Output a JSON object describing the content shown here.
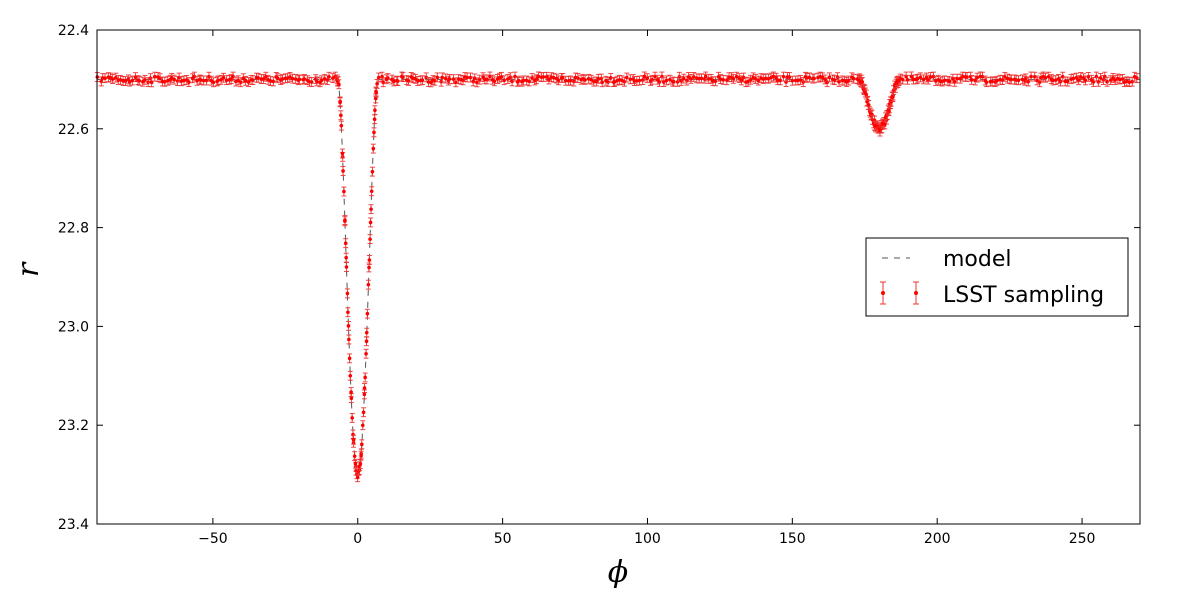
{
  "chart_data": {
    "type": "scatter",
    "title": "",
    "xlabel": "ϕ",
    "ylabel": "r",
    "xlim": [
      -90,
      270
    ],
    "ylim": [
      23.4,
      22.4
    ],
    "y_inverted": true,
    "grid": false,
    "legend_placement": "center-right",
    "x_ticks": [
      -50,
      0,
      50,
      100,
      150,
      200,
      250
    ],
    "x_tick_labels": [
      "−50",
      "0",
      "50",
      "100",
      "150",
      "200",
      "250"
    ],
    "y_ticks": [
      22.4,
      22.6,
      22.8,
      23.0,
      23.2,
      23.4
    ],
    "y_tick_labels": [
      "22.4",
      "22.6",
      "22.8",
      "23.0",
      "23.2",
      "23.4"
    ],
    "colors": {
      "model": "#555555",
      "sampling": "#ff0000"
    },
    "baseline": 22.5,
    "eclipses": [
      {
        "center": 0,
        "depth": 0.8,
        "half_width": 7
      },
      {
        "center": 180,
        "depth": 0.1,
        "half_width": 7
      }
    ],
    "error_bar": 0.009,
    "series": [
      {
        "name": "model",
        "style": "dashed-line"
      },
      {
        "name": "LSST sampling",
        "style": "points-with-error-bars"
      }
    ]
  }
}
